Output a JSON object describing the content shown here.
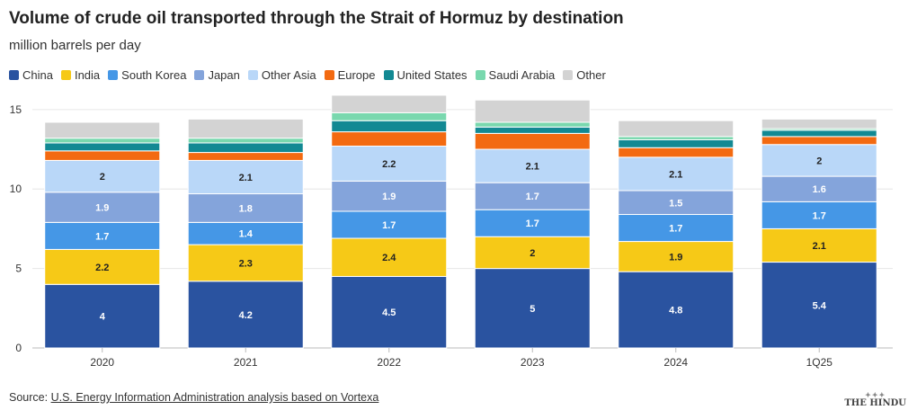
{
  "header": {
    "title": "Volume of crude oil transported through the Strait of Hormuz by destination",
    "subtitle": "million barrels per day"
  },
  "footer": {
    "source_label": "Source: ",
    "source_link": "U.S. Energy Information Administration analysis based on Vortexa",
    "brand": "THE HINDU"
  },
  "chart_data": {
    "type": "bar",
    "stacked": true,
    "title": "Volume of crude oil transported through the Strait of Hormuz by destination",
    "ylabel": "million barrels per day",
    "xlabel": "",
    "ylim": [
      0,
      15.5
    ],
    "yticks": [
      0,
      5,
      10,
      15
    ],
    "grid": true,
    "legend_position": "top-left",
    "categories": [
      "2020",
      "2021",
      "2022",
      "2023",
      "2024",
      "1Q25"
    ],
    "series": [
      {
        "name": "China",
        "color": "#2a53a0",
        "labelColor": "#ffffff",
        "values": [
          4,
          4.2,
          4.5,
          5,
          4.8,
          5.4
        ],
        "labels": [
          "4",
          "4.2",
          "4.5",
          "5",
          "4.8",
          "5.4"
        ]
      },
      {
        "name": "India",
        "color": "#f6c917",
        "labelColor": "#222222",
        "values": [
          2.2,
          2.3,
          2.4,
          2,
          1.9,
          2.1
        ],
        "labels": [
          "2.2",
          "2.3",
          "2.4",
          "2",
          "1.9",
          "2.1"
        ]
      },
      {
        "name": "South Korea",
        "color": "#4597e6",
        "labelColor": "#ffffff",
        "values": [
          1.7,
          1.4,
          1.7,
          1.7,
          1.7,
          1.7
        ],
        "labels": [
          "1.7",
          "1.4",
          "1.7",
          "1.7",
          "1.7",
          "1.7"
        ]
      },
      {
        "name": "Japan",
        "color": "#84a4db",
        "labelColor": "#ffffff",
        "values": [
          1.9,
          1.8,
          1.9,
          1.7,
          1.5,
          1.6
        ],
        "labels": [
          "1.9",
          "1.8",
          "1.9",
          "1.7",
          "1.5",
          "1.6"
        ]
      },
      {
        "name": "Other Asia",
        "color": "#b9d7f8",
        "labelColor": "#222222",
        "values": [
          2,
          2.1,
          2.2,
          2.1,
          2.1,
          2
        ],
        "labels": [
          "2",
          "2.1",
          "2.2",
          "2.1",
          "2.1",
          "2"
        ]
      },
      {
        "name": "Europe",
        "color": "#f36a11",
        "labelColor": "#ffffff",
        "values": [
          0.6,
          0.5,
          0.9,
          1,
          0.6,
          0.5
        ],
        "labels": [
          "",
          "",
          "",
          "",
          "",
          ""
        ]
      },
      {
        "name": "United States",
        "color": "#128993",
        "labelColor": "#ffffff",
        "values": [
          0.5,
          0.6,
          0.7,
          0.4,
          0.5,
          0.4
        ],
        "labels": [
          "",
          "",
          "",
          "",
          "",
          ""
        ]
      },
      {
        "name": "Saudi Arabia",
        "color": "#79d8ae",
        "labelColor": "#222222",
        "values": [
          0.3,
          0.3,
          0.5,
          0.3,
          0.2,
          0.1
        ],
        "labels": [
          "",
          "",
          "",
          "",
          "",
          ""
        ]
      },
      {
        "name": "Other",
        "color": "#d3d3d3",
        "labelColor": "#222222",
        "values": [
          1.0,
          1.2,
          1.1,
          1.4,
          1.0,
          0.6
        ],
        "labels": [
          "",
          "",
          "",
          "",
          "",
          ""
        ]
      }
    ]
  }
}
